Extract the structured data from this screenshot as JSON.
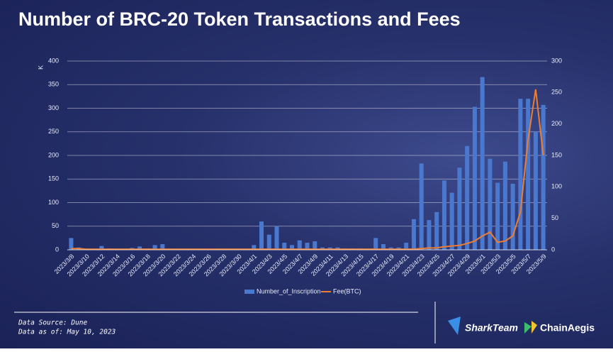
{
  "chart_data": {
    "type": "bar-line",
    "title": "Number of BRC-20 Token Transactions and Fees",
    "y_label": "K",
    "categories": [
      "2023/3/8",
      null,
      "2023/3/10",
      null,
      "2023/3/12",
      null,
      "2023/3/14",
      null,
      "2023/3/16",
      null,
      "2023/3/18",
      null,
      "2023/3/20",
      null,
      "2023/3/22",
      null,
      "2023/3/24",
      null,
      "2023/3/26",
      null,
      "2023/3/28",
      null,
      "2023/3/30",
      null,
      "2023/4/1",
      null,
      "2023/4/3",
      null,
      "2023/4/5",
      null,
      "2023/4/7",
      null,
      "2023/4/9",
      null,
      "2023/4/11",
      null,
      "2023/4/13",
      null,
      "2023/4/15",
      null,
      "2023/4/17",
      null,
      "2023/4/19",
      null,
      "2023/4/21",
      null,
      "2023/4/23",
      null,
      "2023/4/25",
      null,
      "2023/4/27",
      null,
      "2023/4/29",
      null,
      "2023/5/1",
      null,
      "2023/5/3",
      null,
      "2023/5/5",
      null,
      "2023/5/7",
      null,
      "2023/5/9"
    ],
    "series": [
      {
        "name": "Number_of_Inscription",
        "type": "bar",
        "color": "#4a78cf",
        "values": [
          25,
          5,
          2,
          2,
          8,
          3,
          2,
          2,
          4,
          7,
          3,
          10,
          12,
          2,
          1,
          1,
          1,
          1,
          2,
          1,
          2,
          1,
          2,
          2,
          10,
          60,
          32,
          50,
          15,
          10,
          20,
          15,
          18,
          5,
          5,
          5,
          3,
          3,
          3,
          2,
          25,
          12,
          5,
          5,
          15,
          65,
          183,
          63,
          80,
          147,
          121,
          174,
          220,
          303,
          366,
          193,
          142,
          187,
          140,
          320,
          320,
          250,
          307
        ]
      },
      {
        "name": "Fee(BTC)",
        "type": "line",
        "axis": "y2",
        "color": "#ed7d31",
        "values": [
          2,
          2,
          1,
          1,
          1,
          1,
          1,
          1,
          1,
          1,
          1,
          1,
          1,
          1,
          1,
          1,
          1,
          1,
          1,
          1,
          1,
          1,
          1,
          1,
          1,
          1,
          1,
          1,
          1,
          1,
          1,
          1,
          1,
          1,
          1,
          1,
          1,
          1,
          1,
          1,
          1,
          1,
          1,
          1,
          1,
          1,
          2,
          3,
          3,
          5,
          6,
          7,
          10,
          14,
          22,
          28,
          12,
          14,
          22,
          60,
          175,
          255,
          150
        ]
      }
    ],
    "ylim": [
      0,
      400
    ],
    "yticks": [
      0,
      50,
      100,
      150,
      200,
      250,
      300,
      350,
      400
    ],
    "y2lim": [
      0,
      300
    ],
    "y2ticks": [
      0,
      50,
      100,
      150,
      200,
      250,
      300
    ],
    "grid": true,
    "legend": "bottom"
  },
  "footer": {
    "source": "Data Source: Dune",
    "as_of": "Data as of: May 10, 2023",
    "logos": [
      "SharkTeam",
      "ChainAegis"
    ]
  }
}
